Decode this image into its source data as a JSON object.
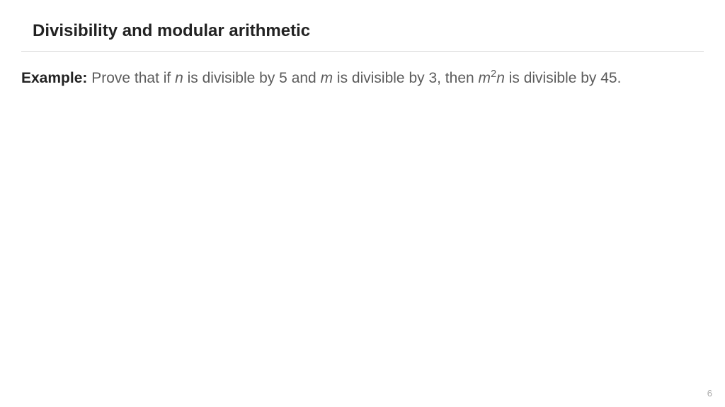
{
  "slide": {
    "title": "Divisibility and modular arithmetic",
    "example_label": "Example:",
    "text_part1": " Prove that if ",
    "var_n": "n",
    "text_part2": " is divisible by 5 and ",
    "var_m": "m",
    "text_part3": " is divisible by 3, then ",
    "var_m2": "m",
    "exponent": "2",
    "var_n2": "n",
    "text_part4": " is divisible by 45.",
    "page_number": "6"
  },
  "styling": {
    "background_color": "#ffffff",
    "title_color": "#222222",
    "title_fontsize": 24,
    "body_color": "#5c5c5c",
    "body_fontsize": 21,
    "divider_color": "#d8d8d8",
    "page_number_color": "#aaaaaa",
    "page_number_fontsize": 13,
    "font_family": "Arial, Helvetica, sans-serif"
  }
}
